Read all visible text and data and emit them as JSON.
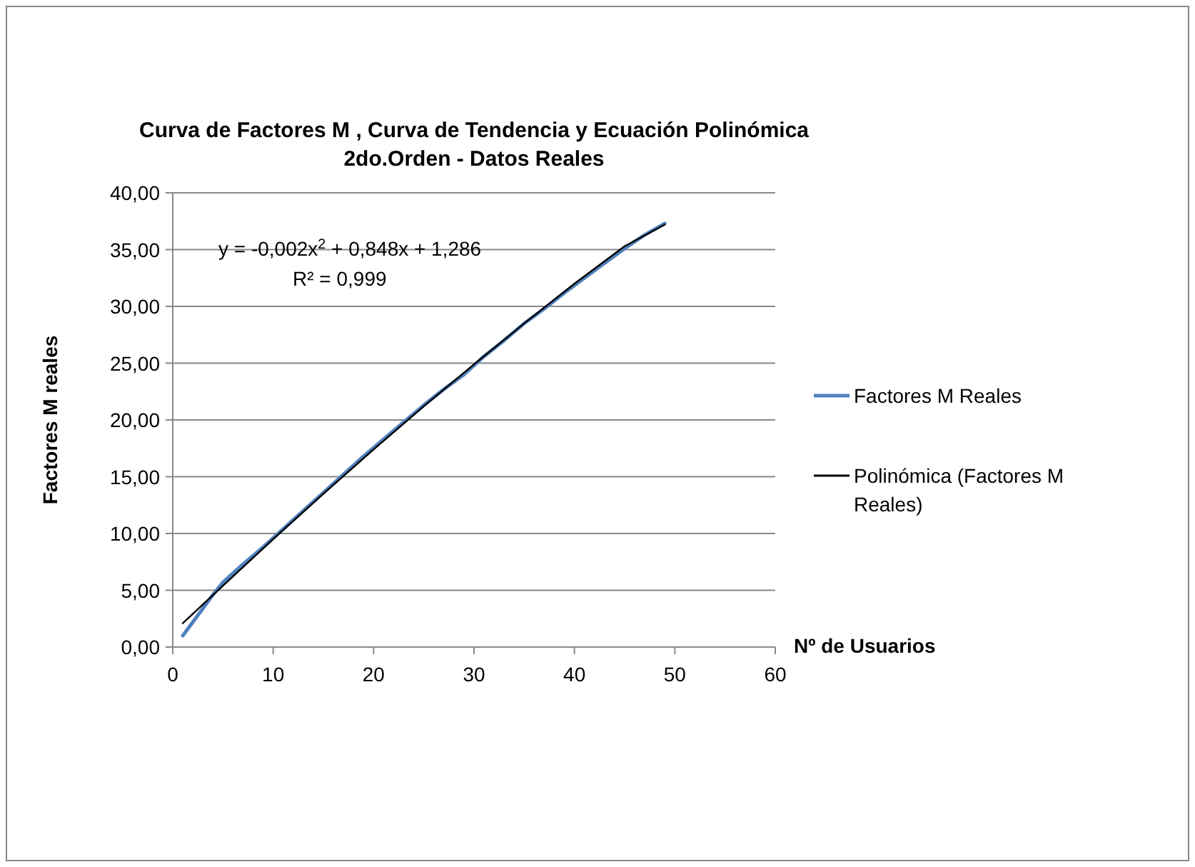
{
  "chart_data": {
    "type": "line",
    "title": "Curva de Factores M , Curva de Tendencia y Ecuación Polinómica\n2do.Orden - Datos Reales",
    "xlabel": "Nº de Usuarios",
    "ylabel": "Factores M reales",
    "xlim": [
      0,
      60
    ],
    "xticks": [
      0,
      10,
      20,
      30,
      40,
      50,
      60
    ],
    "ylim": [
      0,
      40
    ],
    "yticks": [
      {
        "value": 0,
        "label": "0,00"
      },
      {
        "value": 5,
        "label": "5,00"
      },
      {
        "value": 10,
        "label": "10,00"
      },
      {
        "value": 15,
        "label": "15,00"
      },
      {
        "value": 20,
        "label": "20,00"
      },
      {
        "value": 25,
        "label": "25,00"
      },
      {
        "value": 30,
        "label": "30,00"
      },
      {
        "value": 35,
        "label": "35,00"
      },
      {
        "value": 40,
        "label": "40,00"
      }
    ],
    "grid": "y",
    "legend": "right",
    "line_style": "solid",
    "marker": "none",
    "annotations": [
      "y = -0,002x$^{2}$ + 0,848x + 1,286",
      "R² = 0,999"
    ],
    "series": [
      {
        "name": "Factores M Reales",
        "color": "#4f81bd",
        "x": [
          1,
          2,
          3,
          4,
          5,
          7,
          9,
          11,
          13,
          15,
          17,
          19,
          21,
          23,
          25,
          27,
          29,
          31,
          33,
          35,
          37,
          39,
          41,
          43,
          45,
          47,
          49
        ],
        "values": [
          1.0,
          2.2,
          3.4,
          4.6,
          5.7,
          7.3,
          8.8,
          10.4,
          12.0,
          13.6,
          15.2,
          16.8,
          18.3,
          19.8,
          21.3,
          22.7,
          24.0,
          25.6,
          27.0,
          28.5,
          29.8,
          31.2,
          32.5,
          33.8,
          35.1,
          36.3,
          37.3
        ]
      },
      {
        "name": "Polinómica (Factores M Reales)",
        "color": "#000000",
        "type": "line",
        "x": [
          1,
          5,
          10,
          15,
          20,
          25,
          30,
          35,
          40,
          45,
          49
        ],
        "values": [
          2.1,
          5.4,
          9.5,
          13.5,
          17.4,
          21.2,
          24.9,
          28.5,
          32.0,
          35.3,
          37.2
        ]
      }
    ]
  }
}
